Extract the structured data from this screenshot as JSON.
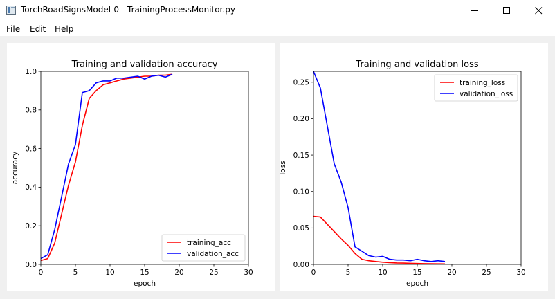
{
  "window": {
    "title": "TorchRoadSignsModel-0 - TrainingProcessMonitor.py",
    "minimize_icon": "minimize-icon",
    "maximize_icon": "maximize-icon",
    "close_icon": "close-icon"
  },
  "menu": {
    "items": [
      {
        "accel": "F",
        "rest": "ile"
      },
      {
        "accel": "E",
        "rest": "dit"
      },
      {
        "accel": "H",
        "rest": "elp"
      }
    ]
  },
  "chart_data": [
    {
      "type": "line",
      "title": "Training and validation accuracy",
      "xlabel": "epoch",
      "ylabel": "accuracy",
      "xlim": [
        0,
        30
      ],
      "ylim": [
        0,
        1.0
      ],
      "xticks": [
        "0",
        "5",
        "10",
        "15",
        "20",
        "25",
        "30"
      ],
      "yticks": [
        "0.0",
        "0.2",
        "0.4",
        "0.6",
        "0.8",
        "1.0"
      ],
      "legend_position": "lower-right",
      "x": [
        0,
        1,
        2,
        3,
        4,
        5,
        6,
        7,
        8,
        9,
        10,
        11,
        12,
        13,
        14,
        15,
        16,
        17,
        18,
        19
      ],
      "series": [
        {
          "name": "training_acc",
          "color": "#ff0000",
          "values": [
            0.02,
            0.03,
            0.11,
            0.26,
            0.41,
            0.53,
            0.72,
            0.86,
            0.9,
            0.93,
            0.94,
            0.95,
            0.96,
            0.965,
            0.97,
            0.975,
            0.975,
            0.98,
            0.98,
            0.985
          ]
        },
        {
          "name": "validation_acc",
          "color": "#0000ff",
          "values": [
            0.03,
            0.05,
            0.18,
            0.35,
            0.52,
            0.62,
            0.89,
            0.9,
            0.94,
            0.95,
            0.95,
            0.965,
            0.965,
            0.97,
            0.975,
            0.96,
            0.975,
            0.98,
            0.97,
            0.985
          ]
        }
      ]
    },
    {
      "type": "line",
      "title": "Training and validation loss",
      "xlabel": "epoch",
      "ylabel": "loss",
      "xlim": [
        0,
        30
      ],
      "ylim": [
        0,
        0.265
      ],
      "xticks": [
        "0",
        "5",
        "10",
        "15",
        "20",
        "25",
        "30"
      ],
      "yticks": [
        "0.00",
        "0.05",
        "0.10",
        "0.15",
        "0.20",
        "0.25"
      ],
      "ytick_values": [
        0,
        0.05,
        0.1,
        0.15,
        0.2,
        0.25
      ],
      "legend_position": "upper-right",
      "x": [
        0,
        1,
        2,
        3,
        4,
        5,
        6,
        7,
        8,
        9,
        10,
        11,
        12,
        13,
        14,
        15,
        16,
        17,
        18,
        19
      ],
      "series": [
        {
          "name": "training_loss",
          "color": "#ff0000",
          "values": [
            0.066,
            0.065,
            0.055,
            0.045,
            0.035,
            0.026,
            0.015,
            0.007,
            0.005,
            0.004,
            0.003,
            0.0025,
            0.002,
            0.0018,
            0.0015,
            0.0012,
            0.001,
            0.0009,
            0.0008,
            0.0007
          ]
        },
        {
          "name": "validation_loss",
          "color": "#0000ff",
          "values": [
            0.265,
            0.242,
            0.19,
            0.138,
            0.113,
            0.078,
            0.024,
            0.018,
            0.012,
            0.01,
            0.011,
            0.007,
            0.006,
            0.006,
            0.005,
            0.007,
            0.005,
            0.004,
            0.005,
            0.004
          ]
        }
      ]
    }
  ]
}
